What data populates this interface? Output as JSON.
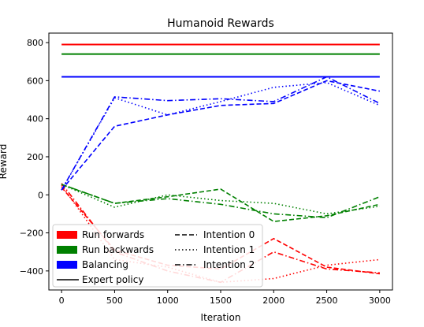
{
  "chart_data": {
    "type": "line",
    "title": "Humanoid Rewards",
    "xlabel": "Iteration",
    "ylabel": "Reward",
    "xlim": [
      -120,
      3120
    ],
    "ylim": [
      -500,
      850
    ],
    "xticks": [
      0,
      500,
      1000,
      1500,
      2000,
      2500,
      3000
    ],
    "yticks": [
      -400,
      -200,
      0,
      200,
      400,
      600,
      800
    ],
    "grid": false,
    "legend_position": "lower-left",
    "colors": {
      "Run forwards": "#ff0000",
      "Run backwards": "#008000",
      "Balancing": "#0000ff",
      "Expert policy": "#000000"
    },
    "legend": {
      "tasks": [
        "Run forwards",
        "Run backwards",
        "Balancing"
      ],
      "styles": [
        {
          "label": "Expert policy",
          "dash": "solid"
        },
        {
          "label": "Intention 0",
          "dash": "dashed"
        },
        {
          "label": "Intention 1",
          "dash": "dotted"
        },
        {
          "label": "Intention 2",
          "dash": "dashdot"
        }
      ]
    },
    "x": [
      0,
      500,
      1000,
      1500,
      2000,
      2500,
      3000
    ],
    "expert": [
      {
        "task": "Run forwards",
        "value": 790
      },
      {
        "task": "Run backwards",
        "value": 740
      },
      {
        "task": "Balancing",
        "value": 620
      }
    ],
    "series": [
      {
        "task": "Run forwards",
        "intention": "Intention 0",
        "values": [
          40,
          -290,
          -370,
          -390,
          -230,
          -380,
          -415
        ]
      },
      {
        "task": "Run forwards",
        "intention": "Intention 1",
        "values": [
          50,
          -340,
          -380,
          -460,
          -440,
          -370,
          -340
        ]
      },
      {
        "task": "Run forwards",
        "intention": "Intention 2",
        "values": [
          60,
          -300,
          -400,
          -460,
          -300,
          -390,
          -410
        ]
      },
      {
        "task": "Run backwards",
        "intention": "Intention 0",
        "values": [
          55,
          -45,
          -10,
          30,
          -140,
          -110,
          -50
        ]
      },
      {
        "task": "Run backwards",
        "intention": "Intention 1",
        "values": [
          55,
          -65,
          0,
          -30,
          -45,
          -100,
          -60
        ]
      },
      {
        "task": "Run backwards",
        "intention": "Intention 2",
        "values": [
          55,
          -45,
          -20,
          -50,
          -100,
          -120,
          -10
        ]
      },
      {
        "task": "Balancing",
        "intention": "Intention 0",
        "values": [
          25,
          360,
          420,
          470,
          480,
          600,
          545
        ]
      },
      {
        "task": "Balancing",
        "intention": "Intention 1",
        "values": [
          25,
          510,
          420,
          490,
          565,
          590,
          470
        ]
      },
      {
        "task": "Balancing",
        "intention": "Intention 2",
        "values": [
          25,
          515,
          495,
          505,
          490,
          620,
          480
        ]
      }
    ]
  }
}
